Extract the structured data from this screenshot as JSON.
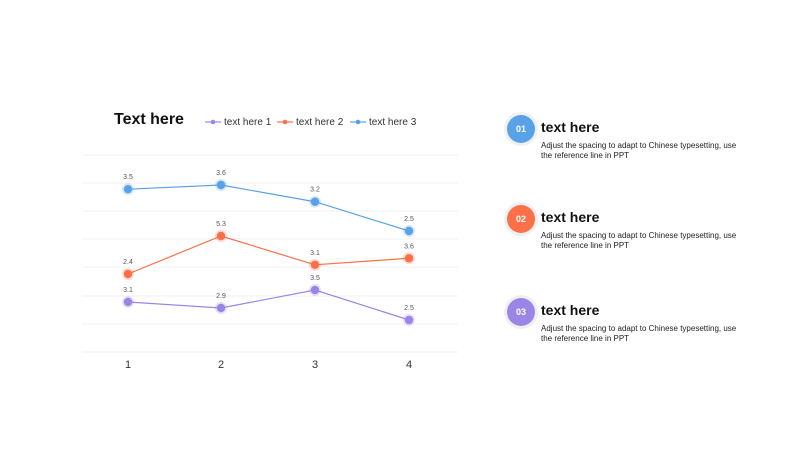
{
  "chart_data": {
    "type": "line",
    "title": "Text here",
    "categories": [
      "1",
      "2",
      "3",
      "4"
    ],
    "series": [
      {
        "name": "text here 1",
        "color": "#9b86e8",
        "values": [
          3.1,
          2.9,
          3.5,
          2.5
        ]
      },
      {
        "name": "text here 2",
        "color": "#fb7048",
        "values": [
          2.4,
          5.3,
          3.1,
          3.6
        ]
      },
      {
        "name": "text here 3",
        "color": "#5aa2e8",
        "values": [
          3.5,
          3.6,
          3.2,
          2.5
        ]
      }
    ],
    "grid": true,
    "legend": "top"
  },
  "items": [
    {
      "number": "01",
      "title": "text here",
      "description": "Adjust the spacing to adapt to Chinese typesetting, use the reference line in PPT",
      "color": "#5aa2e8"
    },
    {
      "number": "02",
      "title": "text here",
      "description": "Adjust the spacing to adapt to Chinese typesetting, use the reference line in PPT",
      "color": "#fb7048"
    },
    {
      "number": "03",
      "title": "text here",
      "description": "Adjust the spacing to adapt to Chinese typesetting, use the reference line in PPT",
      "color": "#9b86e8"
    }
  ]
}
